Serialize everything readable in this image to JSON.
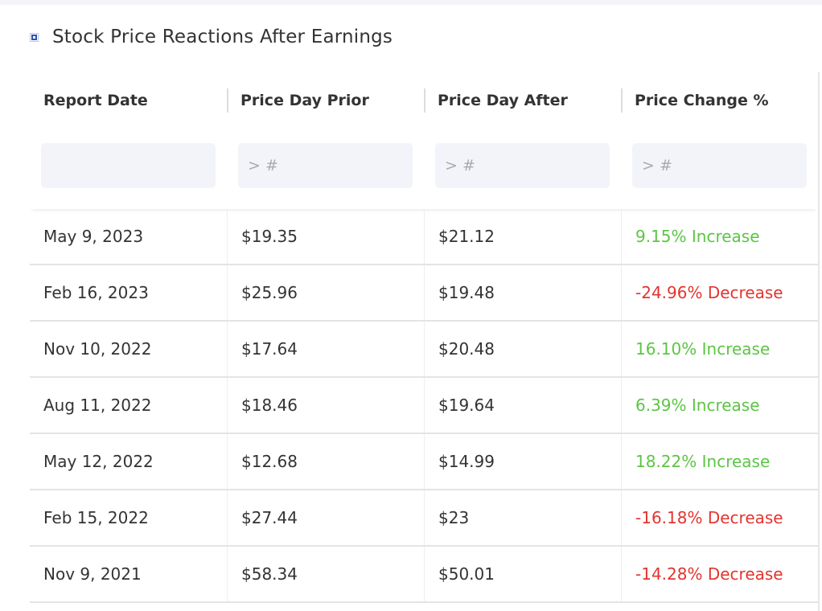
{
  "title": "Stock Price Reactions After Earnings",
  "colors": {
    "increase": "#5cc544",
    "decrease": "#e3342f",
    "icon": "#2f52b6"
  },
  "columns": [
    "Report Date",
    "Price Day Prior",
    "Price Day After",
    "Price Change %"
  ],
  "filters": [
    {
      "value": "",
      "placeholder": ""
    },
    {
      "value": "",
      "placeholder": "> #"
    },
    {
      "value": "",
      "placeholder": "> #"
    },
    {
      "value": "",
      "placeholder": "> #"
    }
  ],
  "rows": [
    {
      "date": "May 9, 2023",
      "prior": "$19.35",
      "after": "$21.12",
      "change": "9.15% Increase",
      "direction": "up"
    },
    {
      "date": "Feb 16, 2023",
      "prior": "$25.96",
      "after": "$19.48",
      "change": "-24.96% Decrease",
      "direction": "down"
    },
    {
      "date": "Nov 10, 2022",
      "prior": "$17.64",
      "after": "$20.48",
      "change": "16.10% Increase",
      "direction": "up"
    },
    {
      "date": "Aug 11, 2022",
      "prior": "$18.46",
      "after": "$19.64",
      "change": "6.39% Increase",
      "direction": "up"
    },
    {
      "date": "May 12, 2022",
      "prior": "$12.68",
      "after": "$14.99",
      "change": "18.22% Increase",
      "direction": "up"
    },
    {
      "date": "Feb 15, 2022",
      "prior": "$27.44",
      "after": "$23",
      "change": "-16.18% Decrease",
      "direction": "down"
    },
    {
      "date": "Nov 9, 2021",
      "prior": "$58.34",
      "after": "$50.01",
      "change": "-14.28% Decrease",
      "direction": "down"
    }
  ]
}
